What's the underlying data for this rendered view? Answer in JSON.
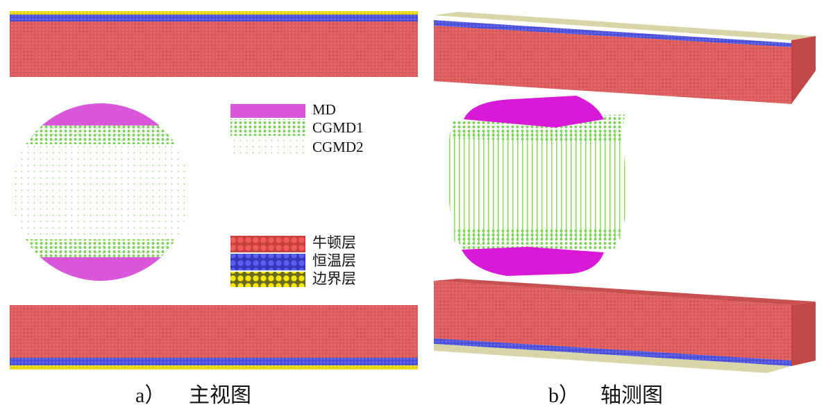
{
  "legend_top": [
    "MD",
    "CGMD1",
    "CGMD2"
  ],
  "legend_bottom": [
    "牛顿层",
    "恒温层",
    "边界层"
  ],
  "captions": [
    {
      "label": "a）",
      "text": "主视图"
    },
    {
      "label": "b）",
      "text": "轴测图"
    }
  ]
}
